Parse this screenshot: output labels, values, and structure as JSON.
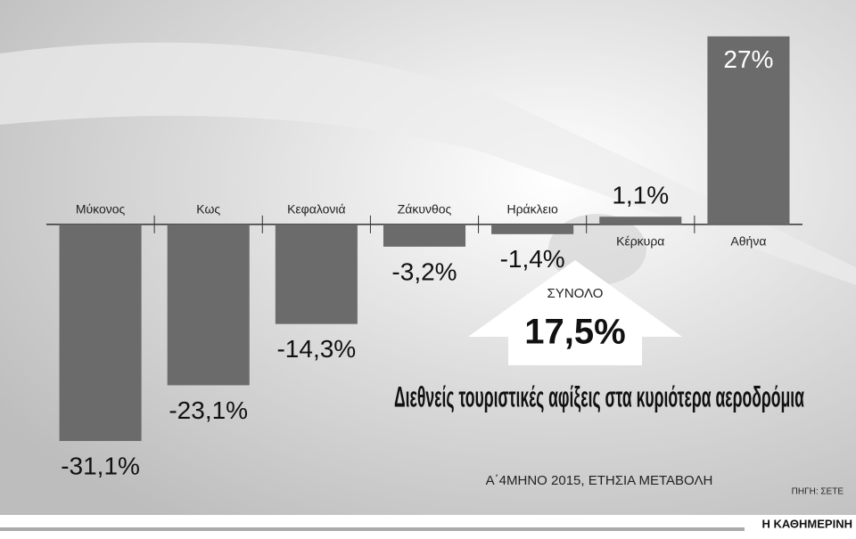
{
  "chart_data": {
    "type": "bar",
    "title": "Διεθνείς τουριστικές αφίξεις στα κυριότερα αεροδρόμια",
    "subtitle": "Α΄4ΜΗΝΟ 2015, ΕΤΗΣΙΑ ΜΕΤΑΒΟΛΗ",
    "source": "ΠΗΓΗ: ΣΕΤΕ",
    "publisher": "Η ΚΑΘΗΜΕΡΙΝΗ",
    "total": {
      "label": "ΣΥΝΟΛΟ",
      "value": 17.5,
      "value_label": "17,5%"
    },
    "categories": [
      "Μύκονος",
      "Κως",
      "Κεφαλονιά",
      "Ζάκυνθος",
      "Ηράκλειο",
      "Κέρκυρα",
      "Αθήνα"
    ],
    "values": [
      -31.1,
      -23.1,
      -14.3,
      -3.2,
      -1.4,
      1.1,
      27
    ],
    "value_labels": [
      "-31,1%",
      "-23,1%",
      "-14,3%",
      "-3,2%",
      "-1,4%",
      "1,1%",
      "27%"
    ],
    "color": "#6b6b6b",
    "ylim": [
      -32,
      28
    ]
  }
}
